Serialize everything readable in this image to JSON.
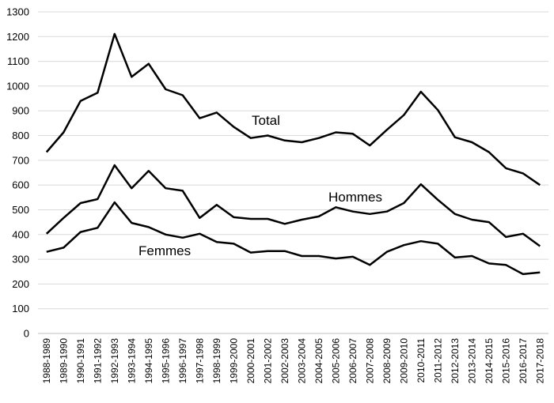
{
  "chart_data": {
    "type": "line",
    "title": "",
    "xlabel": "",
    "ylabel": "",
    "ylim": [
      0,
      1300
    ],
    "yticks": [
      0,
      100,
      200,
      300,
      400,
      500,
      600,
      700,
      800,
      900,
      1000,
      1100,
      1200,
      1300
    ],
    "grid": true,
    "legend": "inline labels",
    "categories": [
      "1988-1989",
      "1989-1990",
      "1990-1991",
      "1991-1992",
      "1992-1993",
      "1993-1994",
      "1994-1995",
      "1995-1996",
      "1996-1997",
      "1997-1998",
      "1998-1999",
      "1999-2000",
      "2000-2001",
      "2001-2002",
      "2002-2003",
      "2003-2004",
      "2004-2005",
      "2005-2006",
      "2006-2007",
      "2007-2008",
      "2008-2009",
      "2009-2010",
      "2010-2011",
      "2011-2012",
      "2012-2013",
      "2013-2014",
      "2014-2015",
      "2015-2016",
      "2016-2017",
      "2017-2018"
    ],
    "series": [
      {
        "name": "Total",
        "color": "#000000",
        "values": [
          733,
          813,
          940,
          973,
          1211,
          1037,
          1090,
          987,
          963,
          870,
          893,
          835,
          790,
          800,
          780,
          773,
          790,
          813,
          807,
          760,
          823,
          883,
          977,
          903,
          793,
          773,
          733,
          668,
          647,
          600
        ]
      },
      {
        "name": "Hommes",
        "color": "#000000",
        "values": [
          403,
          467,
          527,
          543,
          680,
          587,
          657,
          587,
          577,
          467,
          520,
          470,
          463,
          463,
          443,
          460,
          473,
          510,
          493,
          483,
          493,
          527,
          603,
          540,
          483,
          460,
          450,
          390,
          403,
          353
        ]
      },
      {
        "name": "Femmes",
        "color": "#000000",
        "values": [
          330,
          347,
          410,
          427,
          530,
          447,
          430,
          400,
          387,
          403,
          370,
          363,
          327,
          333,
          333,
          313,
          313,
          303,
          310,
          277,
          330,
          357,
          373,
          363,
          307,
          313,
          283,
          277,
          240,
          247
        ]
      }
    ]
  }
}
